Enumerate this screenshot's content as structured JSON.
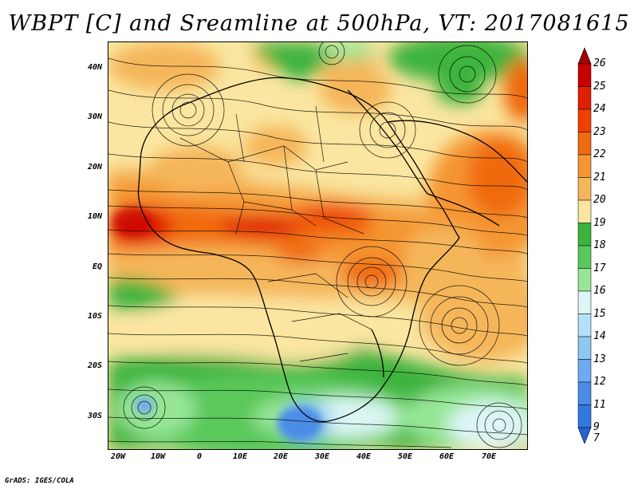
{
  "title": "WBPT [C] and Sreamline at 500hPa, VT: 2017081615",
  "footer": "GrADS: IGES/COLA",
  "lat_labels": [
    "40N",
    "30N",
    "20N",
    "10N",
    "EQ",
    "10S",
    "20S",
    "30S"
  ],
  "lon_labels": [
    "20W",
    "10W",
    "0",
    "10E",
    "20E",
    "30E",
    "40E",
    "50E",
    "60E",
    "70E"
  ],
  "colorbar": {
    "labels": [
      "26",
      "25",
      "24",
      "23",
      "22",
      "21",
      "20",
      "19",
      "18",
      "17",
      "16",
      "15",
      "14",
      "13",
      "12",
      "11",
      "9",
      "7"
    ],
    "colors": [
      "#a50000",
      "#c80000",
      "#e01e00",
      "#f04000",
      "#f06a10",
      "#f59632",
      "#f5b65a",
      "#fae6a0",
      "#3cb43c",
      "#5ac85a",
      "#96e696",
      "#dcf5f5",
      "#b4e1fa",
      "#8cc8f0",
      "#6eaaf0",
      "#4b8ce6",
      "#3278e1",
      "#2364d2"
    ]
  }
}
